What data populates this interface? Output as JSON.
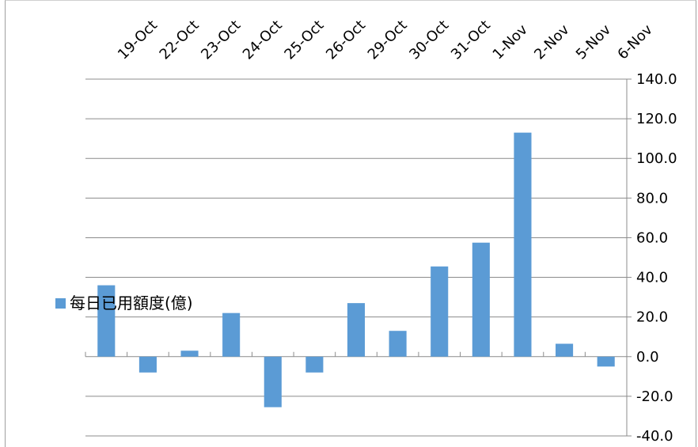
{
  "chart_data": {
    "type": "bar",
    "categories": [
      "19-Oct",
      "22-Oct",
      "23-Oct",
      "24-Oct",
      "25-Oct",
      "26-Oct",
      "29-Oct",
      "30-Oct",
      "31-Oct",
      "1-Nov",
      "2-Nov",
      "5-Nov",
      "6-Nov"
    ],
    "series": [
      {
        "name": "每日已用額度(億)",
        "values": [
          36,
          -8,
          3,
          22,
          -25.5,
          -8,
          27,
          13,
          45.5,
          57.5,
          113,
          6.5,
          -5
        ],
        "color": "#5B9BD5"
      }
    ],
    "title": "",
    "xlabel": "",
    "ylabel": "",
    "ylim": [
      -40,
      140
    ],
    "y_ticks": [
      "140.0",
      "120.0",
      "100.0",
      "80.0",
      "60.0",
      "40.0",
      "20.0",
      "0.0",
      "-20.0",
      "-40.0"
    ],
    "y_axis_side": "right",
    "x_axis_side": "top",
    "grid": true,
    "legend": "left"
  }
}
